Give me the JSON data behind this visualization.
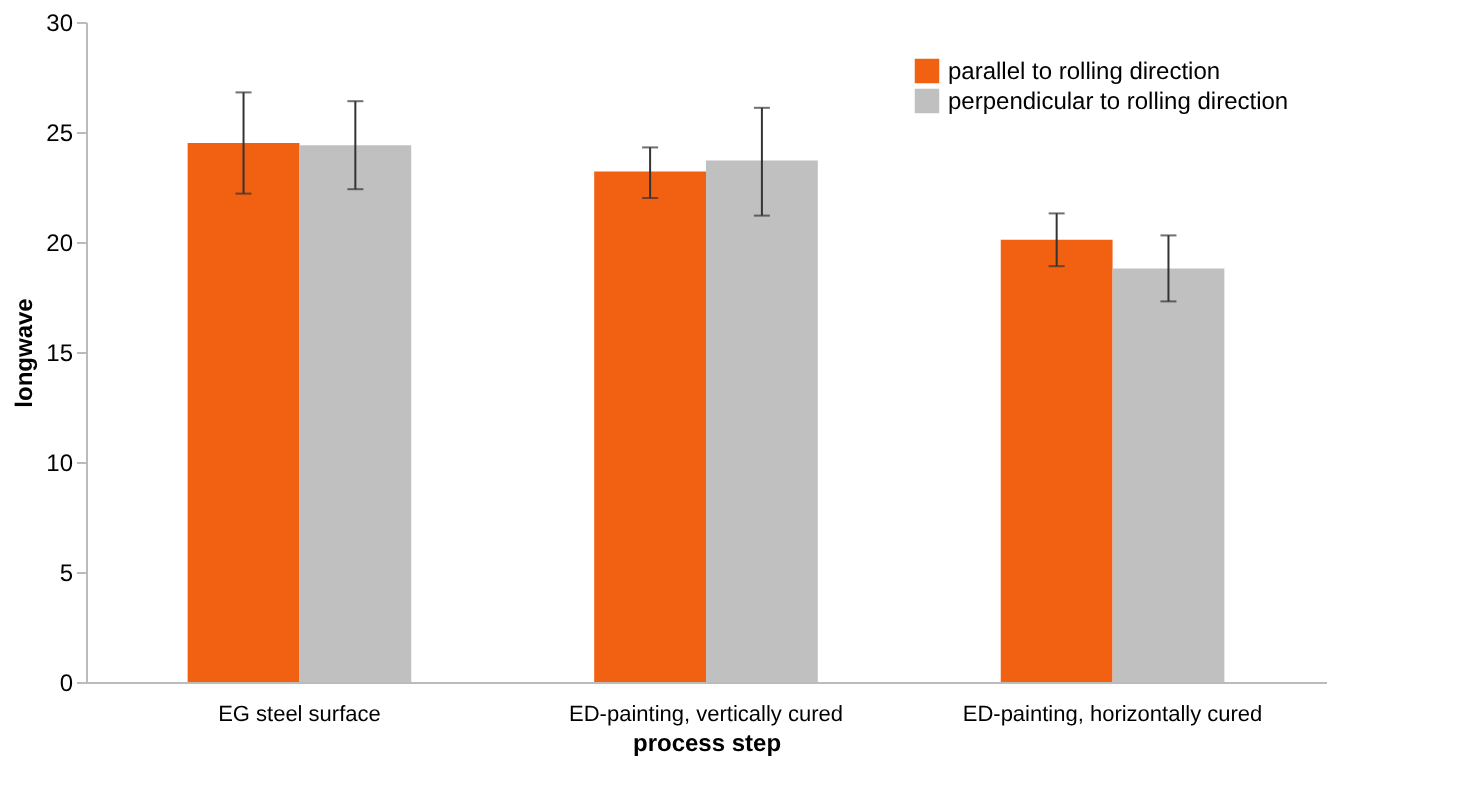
{
  "chart_data": {
    "type": "bar",
    "xlabel": "process step",
    "ylabel": "longwave",
    "categories": [
      "EG steel surface",
      "ED-painting,  vertically cured",
      "ED-painting, horizontally cured"
    ],
    "series": [
      {
        "name": "parallel to rolling direction",
        "color": "#f26012",
        "values": [
          24.5,
          23.2,
          20.1
        ],
        "errors": [
          [
            22.2,
            26.8
          ],
          [
            22.0,
            24.3
          ],
          [
            18.9,
            21.3
          ]
        ]
      },
      {
        "name": "perpendicular to rolling direction",
        "color": "#c0c0c0",
        "values": [
          24.4,
          23.7,
          18.8
        ],
        "errors": [
          [
            22.4,
            26.4
          ],
          [
            21.2,
            26.1
          ],
          [
            17.3,
            20.3
          ]
        ]
      }
    ],
    "ylim": [
      0,
      30
    ],
    "yticks": [
      0,
      5,
      10,
      15,
      20,
      25,
      30
    ],
    "grid": false,
    "legend": "top right"
  }
}
